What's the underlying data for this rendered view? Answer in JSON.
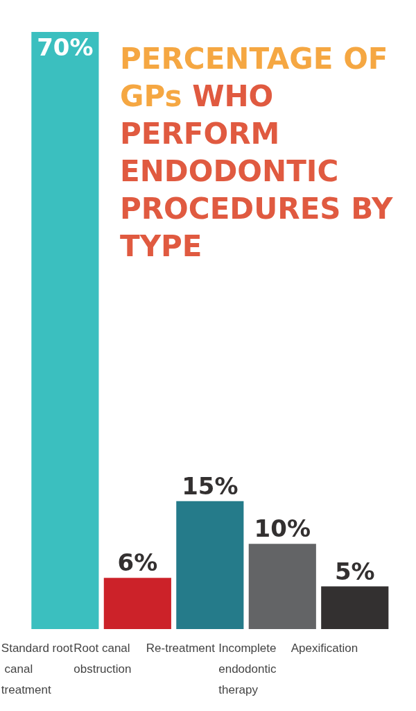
{
  "chart_data": {
    "type": "bar",
    "title": "PERCENTAGE OF GPs WHO PERFORM ENDODONTIC PROCEDURES BY TYPE",
    "categories": [
      "Standard root canal treatment",
      "Root canal obstruction",
      "Re-treatment",
      "Incomplete endodontic therapy",
      "Apexification"
    ],
    "values": [
      70,
      6,
      15,
      10,
      5
    ],
    "colors": [
      "#3bbfbf",
      "#cc2229",
      "#257b8a",
      "#636466",
      "#333030"
    ],
    "value_labels": [
      "70%",
      "6%",
      "15%",
      "10%",
      "5%"
    ]
  }
}
